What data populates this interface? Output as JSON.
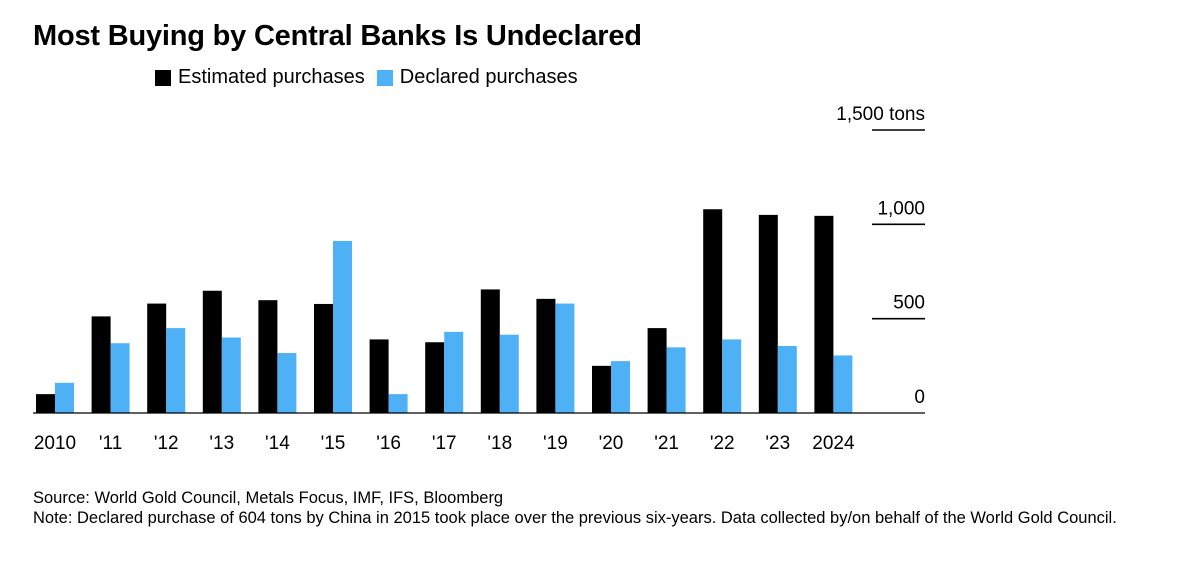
{
  "chart_data": {
    "type": "bar",
    "title": "Most Buying by Central Banks Is Undeclared",
    "categories": [
      "2010",
      "'11",
      "'12",
      "'13",
      "'14",
      "'15",
      "'16",
      "'17",
      "'18",
      "'19",
      "'20",
      "'21",
      "'22",
      "'23",
      "2024"
    ],
    "series": [
      {
        "name": "Estimated purchases",
        "color": "#000000",
        "values": [
          100,
          512,
          580,
          648,
          598,
          578,
          390,
          375,
          655,
          605,
          250,
          450,
          1080,
          1050,
          1045
        ]
      },
      {
        "name": "Declared purchases",
        "color": "#4eb0f5",
        "values": [
          160,
          370,
          450,
          400,
          318,
          912,
          100,
          430,
          415,
          580,
          275,
          348,
          390,
          355,
          305
        ]
      }
    ],
    "yticks": [
      {
        "value": 0,
        "label": "0"
      },
      {
        "value": 500,
        "label": "500"
      },
      {
        "value": 1000,
        "label": "1,000"
      },
      {
        "value": 1500,
        "label": "1,500 tons"
      }
    ],
    "ylim": [
      0,
      1500
    ],
    "grid": false,
    "legend_position": "top-left",
    "xlabel": "",
    "ylabel": ""
  },
  "footer": {
    "source": "Source: World Gold Council, Metals Focus, IMF, IFS, Bloomberg",
    "note": "Note: Declared purchase of 604 tons by China in 2015 took place over the previous six-years. Data collected by/on behalf of the World Gold Council."
  }
}
